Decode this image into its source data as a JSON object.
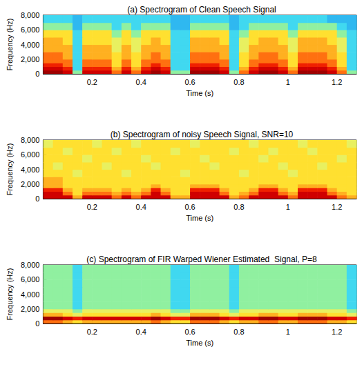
{
  "chart_data": [
    {
      "type": "heatmap",
      "title": "(a) Spectrogram of Clean Speech Signal",
      "x_label": "Time (s)",
      "y_label": "Frequency (Hz)",
      "xlim": [
        0,
        1.28
      ],
      "ylim": [
        0,
        8000
      ],
      "xticks": [
        0.2,
        0.4,
        0.6,
        0.8,
        1,
        1.2
      ],
      "yticks": [
        0,
        2000,
        4000,
        6000,
        8000
      ],
      "x_edges": [
        0,
        0.04,
        0.08,
        0.12,
        0.16,
        0.2,
        0.24,
        0.28,
        0.32,
        0.36,
        0.4,
        0.44,
        0.48,
        0.52,
        0.56,
        0.6,
        0.64,
        0.68,
        0.72,
        0.76,
        0.8,
        0.84,
        0.88,
        0.92,
        0.96,
        1,
        1.04,
        1.08,
        1.12,
        1.16,
        1.2,
        1.24,
        1.28
      ],
      "y_edges": [
        0,
        500,
        1000,
        1500,
        2000,
        3000,
        4000,
        5000,
        6000,
        7000,
        8000
      ],
      "cells": [
        [
          9,
          9,
          8,
          2,
          8,
          8,
          8,
          6,
          8,
          6,
          8,
          9,
          8,
          2,
          2,
          9,
          9,
          9,
          8,
          2,
          6,
          8,
          9,
          9,
          8,
          6,
          9,
          9,
          9,
          8,
          6,
          2
        ],
        [
          8,
          8,
          7,
          1,
          7,
          7,
          7,
          5,
          7,
          5,
          7,
          8,
          7,
          1,
          1,
          8,
          8,
          8,
          7,
          1,
          5,
          7,
          8,
          8,
          7,
          5,
          8,
          8,
          8,
          7,
          5,
          1
        ],
        [
          7,
          7,
          6,
          1,
          6,
          6,
          6,
          4,
          6,
          4,
          6,
          7,
          6,
          1,
          1,
          7,
          7,
          7,
          6,
          1,
          4,
          6,
          7,
          7,
          6,
          4,
          7,
          7,
          7,
          6,
          4,
          1
        ],
        [
          6,
          6,
          6,
          1,
          6,
          6,
          6,
          4,
          6,
          4,
          6,
          6,
          6,
          1,
          1,
          6,
          6,
          6,
          6,
          1,
          4,
          6,
          6,
          6,
          6,
          4,
          6,
          6,
          6,
          6,
          4,
          1
        ],
        [
          6,
          6,
          5,
          1,
          5,
          5,
          5,
          4,
          5,
          4,
          5,
          6,
          5,
          1,
          1,
          6,
          6,
          6,
          5,
          1,
          4,
          5,
          6,
          6,
          5,
          4,
          6,
          6,
          6,
          5,
          4,
          1
        ],
        [
          5,
          5,
          5,
          1,
          5,
          5,
          5,
          3,
          5,
          3,
          5,
          5,
          5,
          1,
          1,
          5,
          5,
          5,
          5,
          1,
          3,
          5,
          5,
          5,
          5,
          3,
          5,
          5,
          5,
          5,
          3,
          1
        ],
        [
          5,
          5,
          4,
          1,
          4,
          4,
          4,
          3,
          4,
          3,
          4,
          5,
          4,
          1,
          1,
          5,
          5,
          5,
          4,
          1,
          3,
          4,
          5,
          5,
          4,
          3,
          5,
          5,
          5,
          4,
          3,
          1
        ],
        [
          4,
          4,
          4,
          1,
          4,
          4,
          4,
          2,
          4,
          2,
          4,
          4,
          4,
          1,
          1,
          4,
          4,
          4,
          4,
          1,
          2,
          4,
          4,
          4,
          4,
          2,
          4,
          4,
          4,
          4,
          2,
          1
        ],
        [
          2,
          2,
          2,
          0,
          2,
          2,
          2,
          1,
          2,
          1,
          2,
          2,
          2,
          0,
          0,
          2,
          2,
          2,
          2,
          0,
          1,
          2,
          2,
          2,
          2,
          1,
          2,
          2,
          2,
          2,
          1,
          0
        ],
        [
          1,
          1,
          1,
          0,
          1,
          1,
          1,
          1,
          1,
          1,
          1,
          1,
          1,
          0,
          0,
          1,
          1,
          1,
          1,
          0,
          1,
          1,
          1,
          1,
          1,
          1,
          1,
          1,
          1,
          0,
          0,
          0
        ]
      ]
    },
    {
      "type": "heatmap",
      "title": "(b) Spectrogram of noisy Speech Signal, SNR=10",
      "x_label": "Time (s)",
      "y_label": "Frequency (Hz)",
      "xlim": [
        0,
        1.28
      ],
      "ylim": [
        0,
        8000
      ],
      "xticks": [
        0.2,
        0.4,
        0.6,
        0.8,
        1,
        1.2
      ],
      "yticks": [
        0,
        2000,
        4000,
        6000,
        8000
      ],
      "x_edges": [
        0,
        0.04,
        0.08,
        0.12,
        0.16,
        0.2,
        0.24,
        0.28,
        0.32,
        0.36,
        0.4,
        0.44,
        0.48,
        0.52,
        0.56,
        0.6,
        0.64,
        0.68,
        0.72,
        0.76,
        0.8,
        0.84,
        0.88,
        0.92,
        0.96,
        1,
        1.04,
        1.08,
        1.12,
        1.16,
        1.2,
        1.24,
        1.28
      ],
      "y_edges": [
        0,
        500,
        1000,
        1500,
        2000,
        3000,
        4000,
        5000,
        6000,
        7000,
        8000
      ],
      "cells": [
        [
          8,
          8,
          8,
          5,
          8,
          8,
          8,
          6,
          8,
          6,
          8,
          8,
          8,
          5,
          5,
          8,
          8,
          8,
          8,
          5,
          6,
          8,
          8,
          8,
          8,
          6,
          8,
          8,
          8,
          8,
          6,
          5
        ],
        [
          8,
          8,
          6,
          4,
          6,
          6,
          6,
          5,
          6,
          5,
          6,
          8,
          6,
          4,
          4,
          8,
          8,
          8,
          6,
          4,
          5,
          6,
          8,
          8,
          6,
          5,
          8,
          8,
          8,
          6,
          5,
          4
        ],
        [
          7,
          7,
          5,
          4,
          5,
          5,
          5,
          4,
          5,
          4,
          5,
          7,
          5,
          4,
          4,
          7,
          7,
          7,
          5,
          4,
          4,
          5,
          7,
          7,
          5,
          4,
          7,
          7,
          7,
          5,
          4,
          4
        ],
        [
          5,
          5,
          4,
          4,
          4,
          4,
          4,
          4,
          4,
          4,
          4,
          5,
          4,
          4,
          4,
          5,
          5,
          5,
          4,
          4,
          4,
          4,
          5,
          5,
          4,
          4,
          5,
          5,
          5,
          4,
          4,
          4
        ],
        [
          5,
          5,
          4,
          4,
          4,
          4,
          4,
          4,
          4,
          4,
          4,
          4,
          4,
          4,
          4,
          4,
          4,
          4,
          4,
          4,
          4,
          4,
          4,
          4,
          4,
          4,
          4,
          4,
          4,
          4,
          4,
          4
        ],
        [
          4,
          4,
          4,
          3,
          4,
          4,
          4,
          4,
          3,
          4,
          4,
          4,
          4,
          4,
          3,
          4,
          4,
          4,
          4,
          4,
          3,
          4,
          4,
          4,
          4,
          3,
          4,
          4,
          4,
          4,
          4,
          4
        ],
        [
          4,
          3,
          4,
          4,
          4,
          4,
          3,
          4,
          4,
          4,
          4,
          3,
          4,
          4,
          4,
          4,
          4,
          3,
          4,
          4,
          4,
          4,
          4,
          4,
          3,
          4,
          4,
          4,
          3,
          4,
          4,
          4
        ],
        [
          4,
          4,
          4,
          4,
          3,
          4,
          4,
          4,
          4,
          4,
          3,
          4,
          4,
          4,
          4,
          4,
          3,
          4,
          4,
          4,
          4,
          4,
          3,
          4,
          4,
          4,
          4,
          4,
          4,
          4,
          3,
          4
        ],
        [
          4,
          4,
          3,
          4,
          4,
          4,
          4,
          3,
          4,
          4,
          4,
          4,
          4,
          3,
          4,
          4,
          4,
          4,
          4,
          3,
          4,
          4,
          4,
          3,
          4,
          4,
          4,
          3,
          4,
          4,
          4,
          4
        ],
        [
          3,
          4,
          4,
          4,
          4,
          3,
          4,
          4,
          4,
          3,
          4,
          4,
          4,
          4,
          4,
          3,
          4,
          4,
          4,
          4,
          4,
          3,
          4,
          4,
          4,
          4,
          3,
          4,
          4,
          4,
          4,
          3
        ]
      ]
    },
    {
      "type": "heatmap",
      "title": "(c) Spectrogram of FIR Warped Wiener Estimated  Signal, P=8",
      "x_label": "Time (s)",
      "y_label": "Frequency (Hz)",
      "xlim": [
        0,
        1.28
      ],
      "ylim": [
        0,
        8000
      ],
      "xticks": [
        0.2,
        0.4,
        0.6,
        0.8,
        1,
        1.2
      ],
      "yticks": [
        0,
        2000,
        4000,
        6000,
        8000
      ],
      "x_edges": [
        0,
        0.04,
        0.08,
        0.12,
        0.16,
        0.2,
        0.24,
        0.28,
        0.32,
        0.36,
        0.4,
        0.44,
        0.48,
        0.52,
        0.56,
        0.6,
        0.64,
        0.68,
        0.72,
        0.76,
        0.8,
        0.84,
        0.88,
        0.92,
        0.96,
        1,
        1.04,
        1.08,
        1.12,
        1.16,
        1.2,
        1.24,
        1.28
      ],
      "y_edges": [
        0,
        500,
        1000,
        1500,
        2000,
        3000,
        4000,
        5000,
        6000,
        7000,
        8000
      ],
      "cells": [
        [
          6,
          6,
          5,
          4,
          5,
          5,
          5,
          5,
          5,
          5,
          5,
          6,
          5,
          4,
          4,
          6,
          6,
          6,
          5,
          4,
          5,
          5,
          6,
          6,
          5,
          5,
          6,
          6,
          6,
          5,
          5,
          4
        ],
        [
          9,
          9,
          8,
          7,
          8,
          8,
          8,
          8,
          8,
          8,
          8,
          9,
          8,
          7,
          7,
          9,
          9,
          9,
          8,
          7,
          8,
          8,
          9,
          9,
          8,
          8,
          9,
          9,
          9,
          8,
          8,
          7
        ],
        [
          5,
          5,
          4,
          3,
          4,
          4,
          4,
          4,
          4,
          4,
          4,
          5,
          4,
          3,
          3,
          5,
          5,
          5,
          4,
          3,
          4,
          4,
          5,
          5,
          4,
          4,
          5,
          5,
          5,
          4,
          4,
          3
        ],
        [
          3,
          3,
          3,
          2,
          3,
          3,
          3,
          3,
          3,
          3,
          3,
          3,
          3,
          2,
          2,
          3,
          3,
          3,
          3,
          2,
          3,
          3,
          3,
          3,
          3,
          3,
          3,
          3,
          3,
          3,
          3,
          2
        ],
        [
          2,
          2,
          2,
          1,
          2,
          2,
          2,
          2,
          2,
          2,
          2,
          2,
          2,
          1,
          1,
          2,
          2,
          2,
          2,
          1,
          2,
          2,
          2,
          2,
          2,
          2,
          2,
          2,
          2,
          2,
          2,
          1
        ],
        [
          2,
          2,
          2,
          1,
          2,
          2,
          2,
          2,
          2,
          2,
          2,
          2,
          2,
          1,
          1,
          2,
          2,
          2,
          2,
          1,
          2,
          2,
          2,
          2,
          2,
          2,
          2,
          2,
          2,
          2,
          2,
          1
        ],
        [
          2,
          2,
          2,
          1,
          2,
          2,
          2,
          2,
          2,
          2,
          2,
          2,
          2,
          1,
          1,
          2,
          2,
          2,
          2,
          1,
          2,
          2,
          2,
          2,
          2,
          2,
          2,
          2,
          2,
          2,
          2,
          1
        ],
        [
          2,
          2,
          2,
          1,
          2,
          2,
          2,
          2,
          2,
          2,
          2,
          2,
          2,
          1,
          1,
          2,
          2,
          2,
          2,
          1,
          2,
          2,
          2,
          2,
          2,
          2,
          2,
          2,
          2,
          2,
          2,
          1
        ],
        [
          2,
          2,
          2,
          1,
          2,
          2,
          2,
          2,
          2,
          2,
          2,
          2,
          2,
          1,
          1,
          2,
          2,
          2,
          2,
          1,
          2,
          2,
          2,
          2,
          2,
          2,
          2,
          2,
          2,
          2,
          2,
          1
        ],
        [
          2,
          2,
          2,
          1,
          2,
          2,
          2,
          2,
          2,
          2,
          2,
          2,
          2,
          1,
          1,
          2,
          2,
          2,
          2,
          1,
          2,
          2,
          2,
          2,
          2,
          2,
          2,
          2,
          2,
          2,
          2,
          1
        ]
      ]
    }
  ]
}
